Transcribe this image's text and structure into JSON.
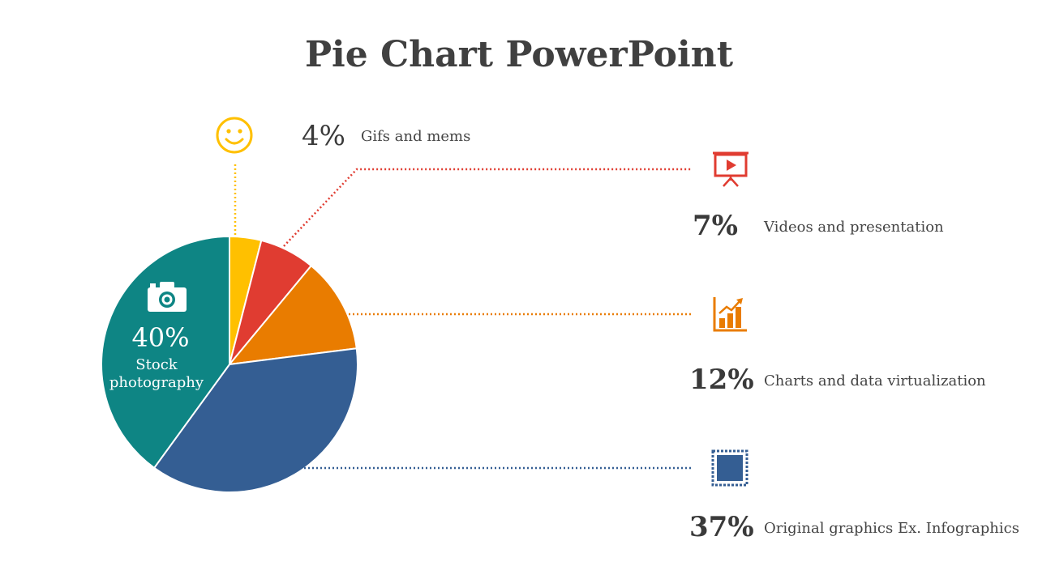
{
  "title": "Pie Chart PowerPoint",
  "colors": {
    "gifs": "#FFC000",
    "videos": "#E03C31",
    "charts": "#E97C00",
    "original": "#345E93",
    "stock": "#0E8584",
    "text": "#404040"
  },
  "chart_data": {
    "type": "pie",
    "title": "Pie Chart PowerPoint",
    "slices": [
      {
        "label": "Gifs and mems",
        "value": 4,
        "value_text": "4%",
        "color": "#FFC000",
        "icon": "smiley-icon"
      },
      {
        "label": "Videos and presentation",
        "value": 7,
        "value_text": "7%",
        "color": "#E03C31",
        "icon": "presentation-video-icon"
      },
      {
        "label": "Charts and data virtualization",
        "value": 12,
        "value_text": "12%",
        "color": "#E97C00",
        "icon": "bar-chart-icon"
      },
      {
        "label": "Original graphics Ex. Infographics",
        "value": 37,
        "value_text": "37%",
        "color": "#345E93",
        "icon": "stamp-icon"
      },
      {
        "label": "Stock photography",
        "value": 40,
        "value_text": "40%",
        "color": "#0E8584",
        "icon": "camera-icon"
      }
    ]
  },
  "inner": {
    "pct": "40%",
    "line1": "Stock",
    "line2": "photography"
  }
}
